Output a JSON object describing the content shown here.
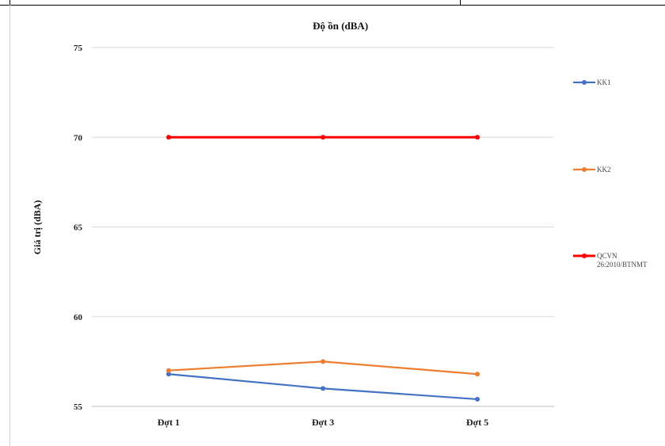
{
  "chart_data": {
    "type": "line",
    "title": "Độ ồn (dBA)",
    "ylabel": "Giá trị (dBA)",
    "xlabel": "",
    "categories": [
      "Đợt 1",
      "Đợt 3",
      "Đợt 5"
    ],
    "ylim": [
      55,
      75
    ],
    "yticks": [
      55,
      60,
      65,
      70,
      75
    ],
    "grid": true,
    "legend_position": "right",
    "series": [
      {
        "name": "KK1",
        "values": [
          56.8,
          56.0,
          55.4
        ],
        "color": "#4472c4"
      },
      {
        "name": "KK2",
        "values": [
          57.0,
          57.5,
          56.8
        ],
        "color": "#ed7d31"
      },
      {
        "name": "QCVN 26:2010/BTNMT",
        "name_lines": [
          "QCVN",
          "26:2010/BTNMT"
        ],
        "values": [
          70,
          70,
          70
        ],
        "color": "#ff0000"
      }
    ]
  }
}
